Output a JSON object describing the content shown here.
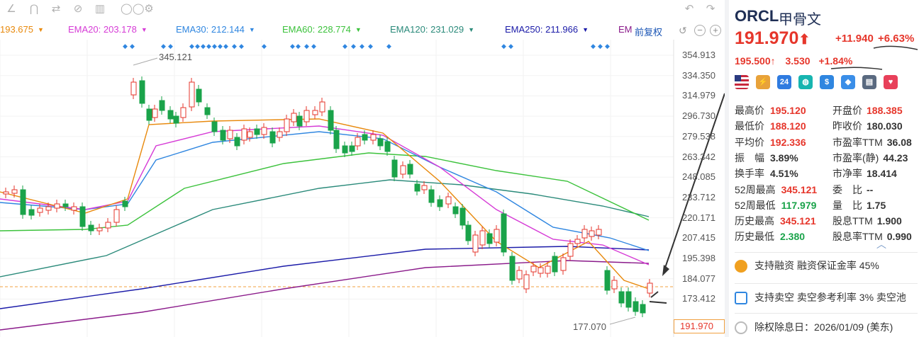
{
  "ema_row": [
    {
      "label": "",
      "value": "193.675",
      "color": "#e8890c"
    },
    {
      "label": "EMA20:",
      "value": "203.178",
      "color": "#d63bd6"
    },
    {
      "label": "EMA30:",
      "value": "212.144",
      "color": "#2f86e0"
    },
    {
      "label": "EMA60:",
      "value": "228.774",
      "color": "#3cc23c"
    },
    {
      "label": "EMA120:",
      "value": "231.029",
      "color": "#2a8a7a"
    },
    {
      "label": "EMA250:",
      "value": "211.966",
      "color": "#1a1aa8"
    },
    {
      "label": "EM",
      "value": "",
      "color": "#8a1a8a"
    }
  ],
  "adjust_label": "前复权",
  "chart": {
    "high_label": "345.121",
    "low_label": "177.070",
    "price_tag": "191.970",
    "y_axis": [
      "354.913",
      "334.350",
      "314.979",
      "296.730",
      "279.538",
      "263.342",
      "248.085",
      "233.712",
      "220.171",
      "207.415",
      "195.398",
      "184.077",
      "173.412"
    ]
  },
  "quote": {
    "symbol": "ORCL",
    "name": "甲骨文",
    "price": "191.970",
    "arrow": "⬆",
    "change": "+11.940",
    "change_pct": "+6.63%",
    "after_price": "195.500",
    "after_arrow": "↑",
    "after_change": "3.530",
    "after_pct": "+1.84%"
  },
  "badges": [
    {
      "name": "us-flag-icon",
      "text": "",
      "color": "#fff"
    },
    {
      "name": "lightning-icon",
      "text": "⚡",
      "color": "#e8a23a"
    },
    {
      "name": "24h-icon",
      "text": "24",
      "color": "#2f7be0"
    },
    {
      "name": "globe-icon",
      "text": "◍",
      "color": "#17b5b0"
    },
    {
      "name": "dollar-icon",
      "text": "$",
      "color": "#2f86e0"
    },
    {
      "name": "tag-icon",
      "text": "◆",
      "color": "#3a8ee8"
    },
    {
      "name": "document-icon",
      "text": "▤",
      "color": "#5a6a80"
    },
    {
      "name": "heart-icon",
      "text": "♥",
      "color": "#e8405a"
    }
  ],
  "stats": [
    {
      "l": "最高价",
      "v": "195.120",
      "c": "#e6362b",
      "r": "开盘价",
      "rv": "188.385",
      "rc": "#e6362b"
    },
    {
      "l": "最低价",
      "v": "188.120",
      "c": "#e6362b",
      "r": "昨收价",
      "rv": "180.030",
      "rc": "#333"
    },
    {
      "l": "平均价",
      "v": "192.336",
      "c": "#e6362b",
      "r": "市盈率TTM",
      "rv": "36.08",
      "rc": "#333"
    },
    {
      "l": "振　幅",
      "v": "3.89%",
      "c": "#333",
      "r": "市盈率(静)",
      "rv": "44.23",
      "rc": "#333"
    },
    {
      "l": "换手率",
      "v": "4.51%",
      "c": "#333",
      "r": "市净率",
      "rv": "18.414",
      "rc": "#333"
    },
    {
      "l": "52周最高",
      "v": "345.121",
      "c": "#e6362b",
      "r": "委　比",
      "rv": "--",
      "rc": "#333"
    },
    {
      "l": "52周最低",
      "v": "117.979",
      "c": "#1aa34a",
      "r": "量　比",
      "rv": "1.75",
      "rc": "#333"
    },
    {
      "l": "历史最高",
      "v": "345.121",
      "c": "#e6362b",
      "r": "股息TTM",
      "rv": "1.900",
      "rc": "#333"
    },
    {
      "l": "历史最低",
      "v": "2.380",
      "c": "#1aa34a",
      "r": "股息率TTM",
      "rv": "0.990",
      "rc": "#333"
    }
  ],
  "info": [
    {
      "text": "支持融资 融资保证金率 45%",
      "color": "#f0a020"
    },
    {
      "text": "支持卖空 卖空参考利率 3% 卖空池",
      "color": "#2f86e0"
    },
    {
      "text": "除权除息日：2026/01/09 (美东)",
      "color": "#999"
    }
  ],
  "colors": {
    "up": "#e6362b",
    "down": "#1aa34a",
    "grid": "#f0f0f0"
  }
}
